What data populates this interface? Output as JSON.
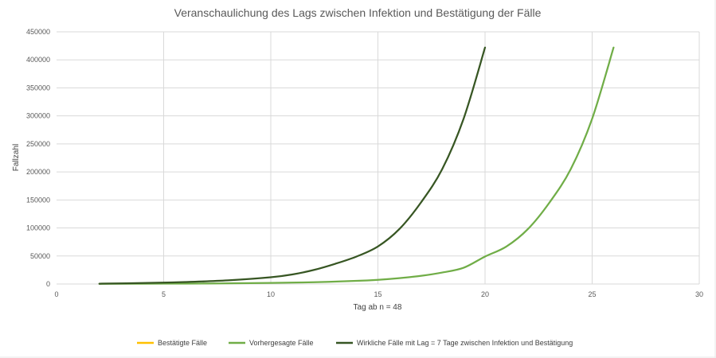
{
  "chart_data": {
    "type": "line",
    "title": "Veranschaulichung des Lags zwischen Infektion und Bestätigung der Fälle",
    "xlabel": "Tag ab n = 48",
    "ylabel": "Fallzahl",
    "xlim": [
      0,
      30
    ],
    "ylim": [
      0,
      450000
    ],
    "x_ticks": [
      0,
      5,
      10,
      15,
      20,
      25,
      30
    ],
    "y_ticks": [
      0,
      50000,
      100000,
      150000,
      200000,
      250000,
      300000,
      350000,
      400000,
      450000
    ],
    "grid": true,
    "legend_position": "bottom",
    "series": [
      {
        "name": "Bestätigte Fälle",
        "color": "#ffc000",
        "x": [],
        "y": []
      },
      {
        "name": "Vorhergesagte Fälle",
        "color": "#70ad47",
        "x": [
          2,
          4,
          6,
          8,
          10,
          12,
          14,
          15,
          16,
          17,
          18,
          19,
          20,
          21,
          22,
          23,
          24,
          25,
          26
        ],
        "y": [
          300,
          600,
          800,
          1200,
          2000,
          3200,
          5600,
          7500,
          10500,
          14500,
          20500,
          29000,
          49000,
          67000,
          98000,
          145000,
          205000,
          295000,
          422000
        ]
      },
      {
        "name": "Wirkliche Fälle mit Lag = 7 Tage zwischen Infektion und Bestätigung",
        "color": "#375623",
        "x": [
          2,
          4,
          6,
          8,
          10,
          11,
          12,
          13,
          14,
          15,
          16,
          17,
          18,
          19,
          20
        ],
        "y": [
          600,
          1700,
          3500,
          6500,
          12000,
          17000,
          25000,
          36000,
          49000,
          67000,
          98000,
          145000,
          205000,
          295000,
          422000
        ]
      }
    ]
  }
}
